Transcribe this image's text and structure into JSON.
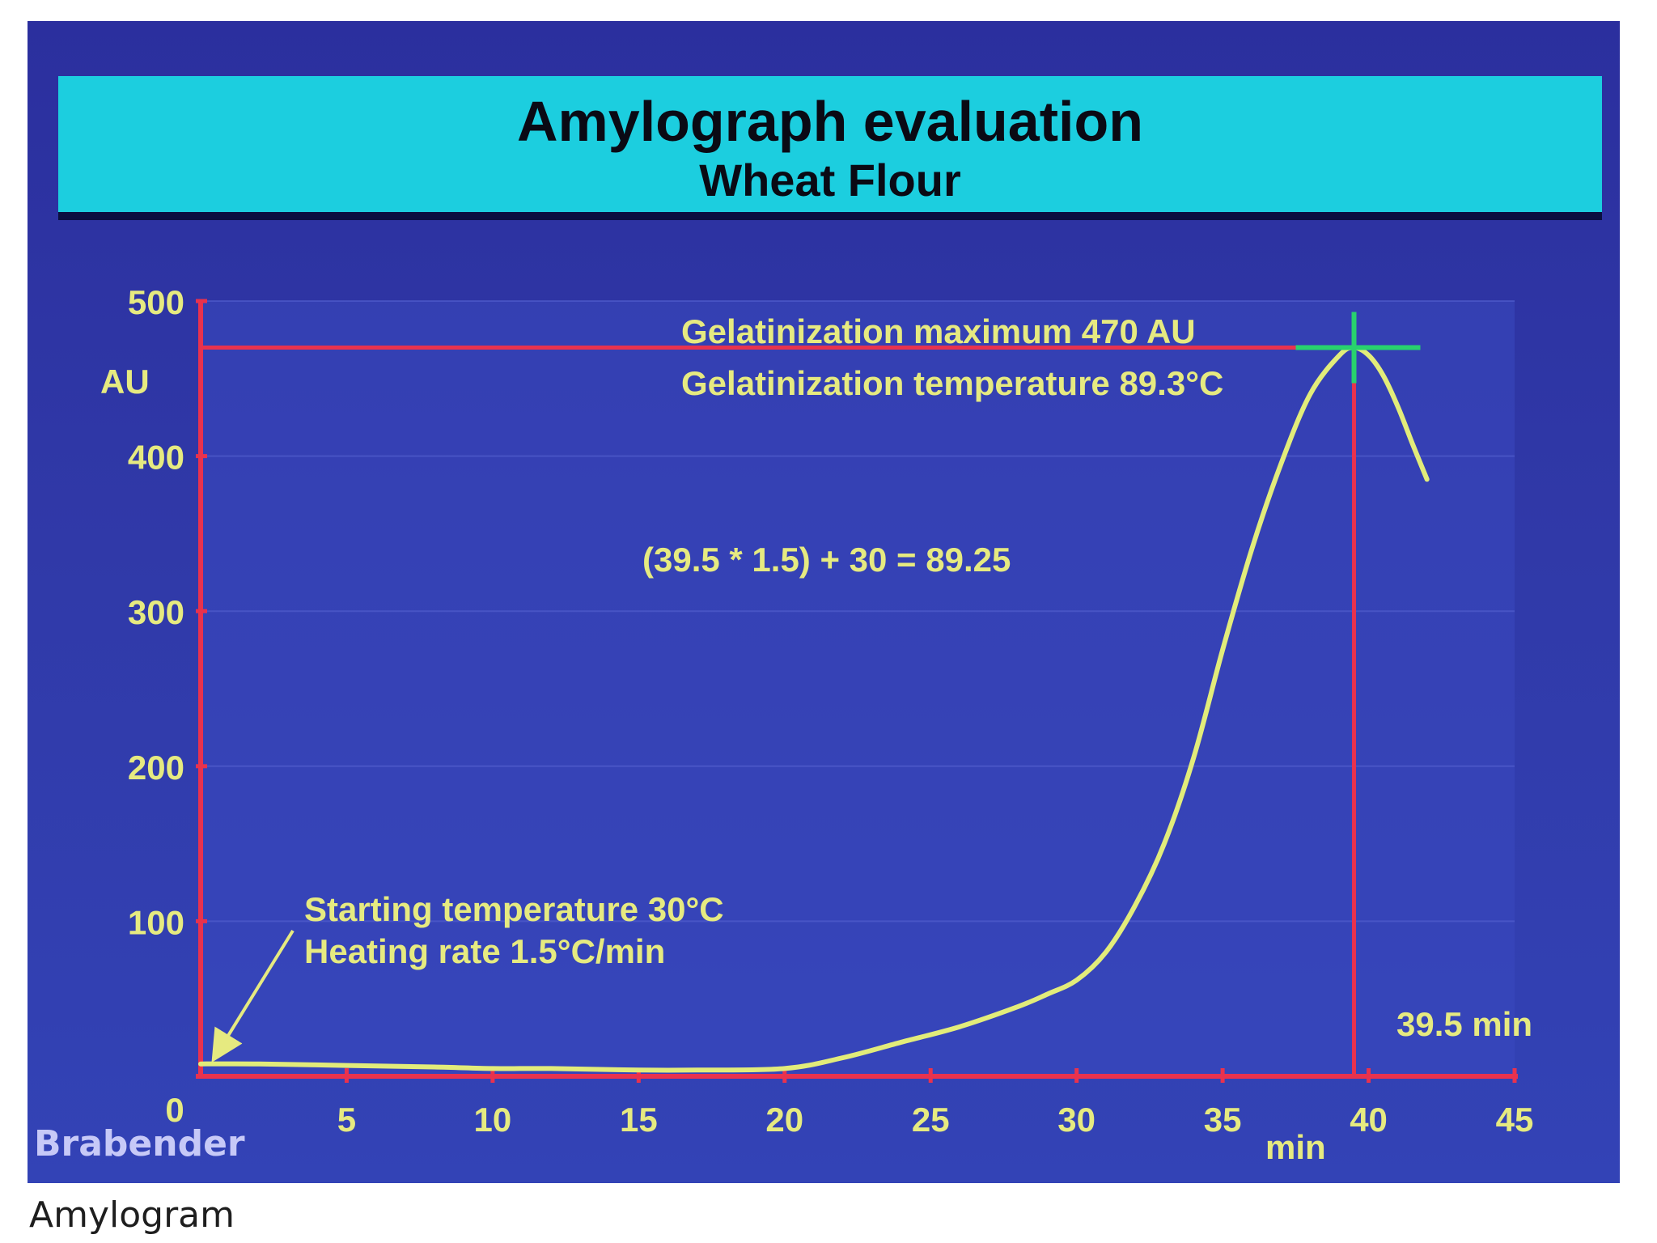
{
  "caption": "Amylogram",
  "logo": "Brabender",
  "colors": {
    "background": "#3039a8",
    "banner": "#1ccedf",
    "axis": "#e8324e",
    "curve": "#e2ec7a",
    "label": "#e6ea80",
    "marker": "#28d26e"
  },
  "chart_data": {
    "type": "line",
    "title": "Amylograph evaluation",
    "subtitle": "Wheat Flour",
    "xlabel": "min",
    "ylabel": "AU",
    "xlim": [
      0,
      45
    ],
    "ylim": [
      0,
      500
    ],
    "xticks": [
      "0",
      "5",
      "10",
      "15",
      "20",
      "25",
      "30",
      "35",
      "40",
      "45"
    ],
    "yticks": [
      "100",
      "200",
      "300",
      "400",
      "500"
    ],
    "x": [
      0,
      2,
      5,
      8,
      10,
      12,
      15,
      17,
      20,
      22,
      24,
      26,
      28,
      29,
      30,
      31,
      32,
      33,
      34,
      35,
      36,
      37,
      38,
      39,
      39.5,
      40,
      40.5,
      41,
      41.5,
      42
    ],
    "y": [
      8,
      8,
      7,
      6,
      5,
      5,
      4,
      4,
      5,
      12,
      22,
      32,
      45,
      53,
      62,
      80,
      110,
      150,
      205,
      275,
      340,
      395,
      440,
      465,
      470,
      465,
      452,
      432,
      408,
      385
    ],
    "annotations": {
      "max_line1": "Gelatinization maximum 470 AU",
      "max_line2": "Gelatinization temperature 89.3°C",
      "formula": "(39.5 * 1.5) + 30 = 89.25",
      "start_line1": "Starting temperature 30°C",
      "start_line2": "Heating rate 1.5°C/min",
      "time_label": "39.5 min"
    },
    "peak": {
      "x": 39.5,
      "y": 470
    }
  }
}
